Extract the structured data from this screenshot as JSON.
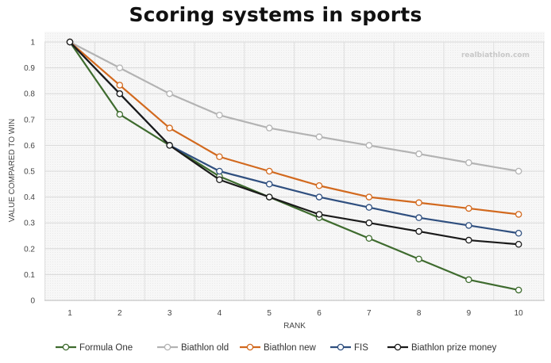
{
  "title": "Scoring systems in sports",
  "watermark": "realbiathlon.com",
  "chart_data": {
    "type": "line",
    "title": "Scoring systems in sports",
    "xlabel": "RANK",
    "ylabel": "VALUE COMPARED TO WIN",
    "x": [
      1,
      2,
      3,
      4,
      5,
      6,
      7,
      8,
      9,
      10
    ],
    "ylim": [
      0,
      1
    ],
    "yticks": [
      "0",
      "0.1",
      "0.2",
      "0.3",
      "0.4",
      "0.5",
      "0.6",
      "0.7",
      "0.8",
      "0.9",
      "1"
    ],
    "grid": true,
    "legend_position": "bottom",
    "series": [
      {
        "name": "Formula One",
        "color": "#3e6b2e",
        "values": [
          1,
          0.72,
          0.6,
          0.48,
          0.4,
          0.32,
          0.24,
          0.16,
          0.08,
          0.04
        ]
      },
      {
        "name": "Biathlon old",
        "color": "#b3b3b3",
        "values": [
          1,
          0.9,
          0.8,
          0.717,
          0.667,
          0.633,
          0.6,
          0.567,
          0.533,
          0.5
        ]
      },
      {
        "name": "Biathlon new",
        "color": "#d2691e",
        "values": [
          1,
          0.833,
          0.667,
          0.556,
          0.5,
          0.444,
          0.4,
          0.378,
          0.356,
          0.333
        ]
      },
      {
        "name": "FIS",
        "color": "#2f4f7f",
        "values": [
          1,
          0.8,
          0.6,
          0.5,
          0.45,
          0.4,
          0.36,
          0.32,
          0.29,
          0.26
        ]
      },
      {
        "name": "Biathlon prize money",
        "color": "#1a1a1a",
        "values": [
          1,
          0.8,
          0.6,
          0.467,
          0.4,
          0.333,
          0.3,
          0.267,
          0.233,
          0.217
        ]
      }
    ]
  }
}
